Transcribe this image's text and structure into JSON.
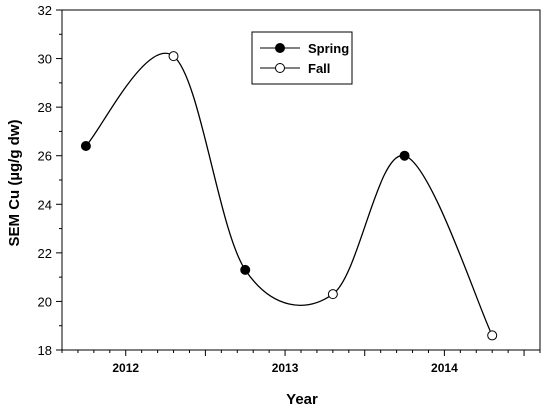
{
  "chart_data": {
    "type": "line",
    "title": "",
    "xlabel": "Year",
    "ylabel": "SEM Cu (µg/g dw)",
    "ylim": [
      18,
      32
    ],
    "yticks": [
      18,
      20,
      22,
      24,
      26,
      28,
      30,
      32
    ],
    "ytick_labels": [
      "18",
      "20",
      "22",
      "24",
      "26",
      "28",
      "30",
      "32"
    ],
    "xlim": [
      2011.6,
      2014.6
    ],
    "xticks": [
      2012,
      2013,
      2014
    ],
    "xtick_labels": [
      "2012",
      "2013",
      "2014"
    ],
    "grid": false,
    "legend_position": "top-center",
    "smooth_curve": [
      {
        "x": 2011.75,
        "y": 26.4
      },
      {
        "x": 2012.3,
        "y": 30.1
      },
      {
        "x": 2012.75,
        "y": 21.3
      },
      {
        "x": 2013.3,
        "y": 20.3
      },
      {
        "x": 2013.75,
        "y": 26.0
      },
      {
        "x": 2014.3,
        "y": 18.6
      }
    ],
    "series": [
      {
        "name": "Spring",
        "marker": "filled-circle",
        "color": "#000000",
        "points": [
          {
            "x": 2011.75,
            "y": 26.4
          },
          {
            "x": 2012.75,
            "y": 21.3
          },
          {
            "x": 2013.75,
            "y": 26.0
          }
        ]
      },
      {
        "name": "Fall",
        "marker": "open-circle",
        "color": "#000000",
        "points": [
          {
            "x": 2012.3,
            "y": 30.1
          },
          {
            "x": 2013.3,
            "y": 20.3
          },
          {
            "x": 2014.3,
            "y": 18.6
          }
        ]
      }
    ]
  }
}
